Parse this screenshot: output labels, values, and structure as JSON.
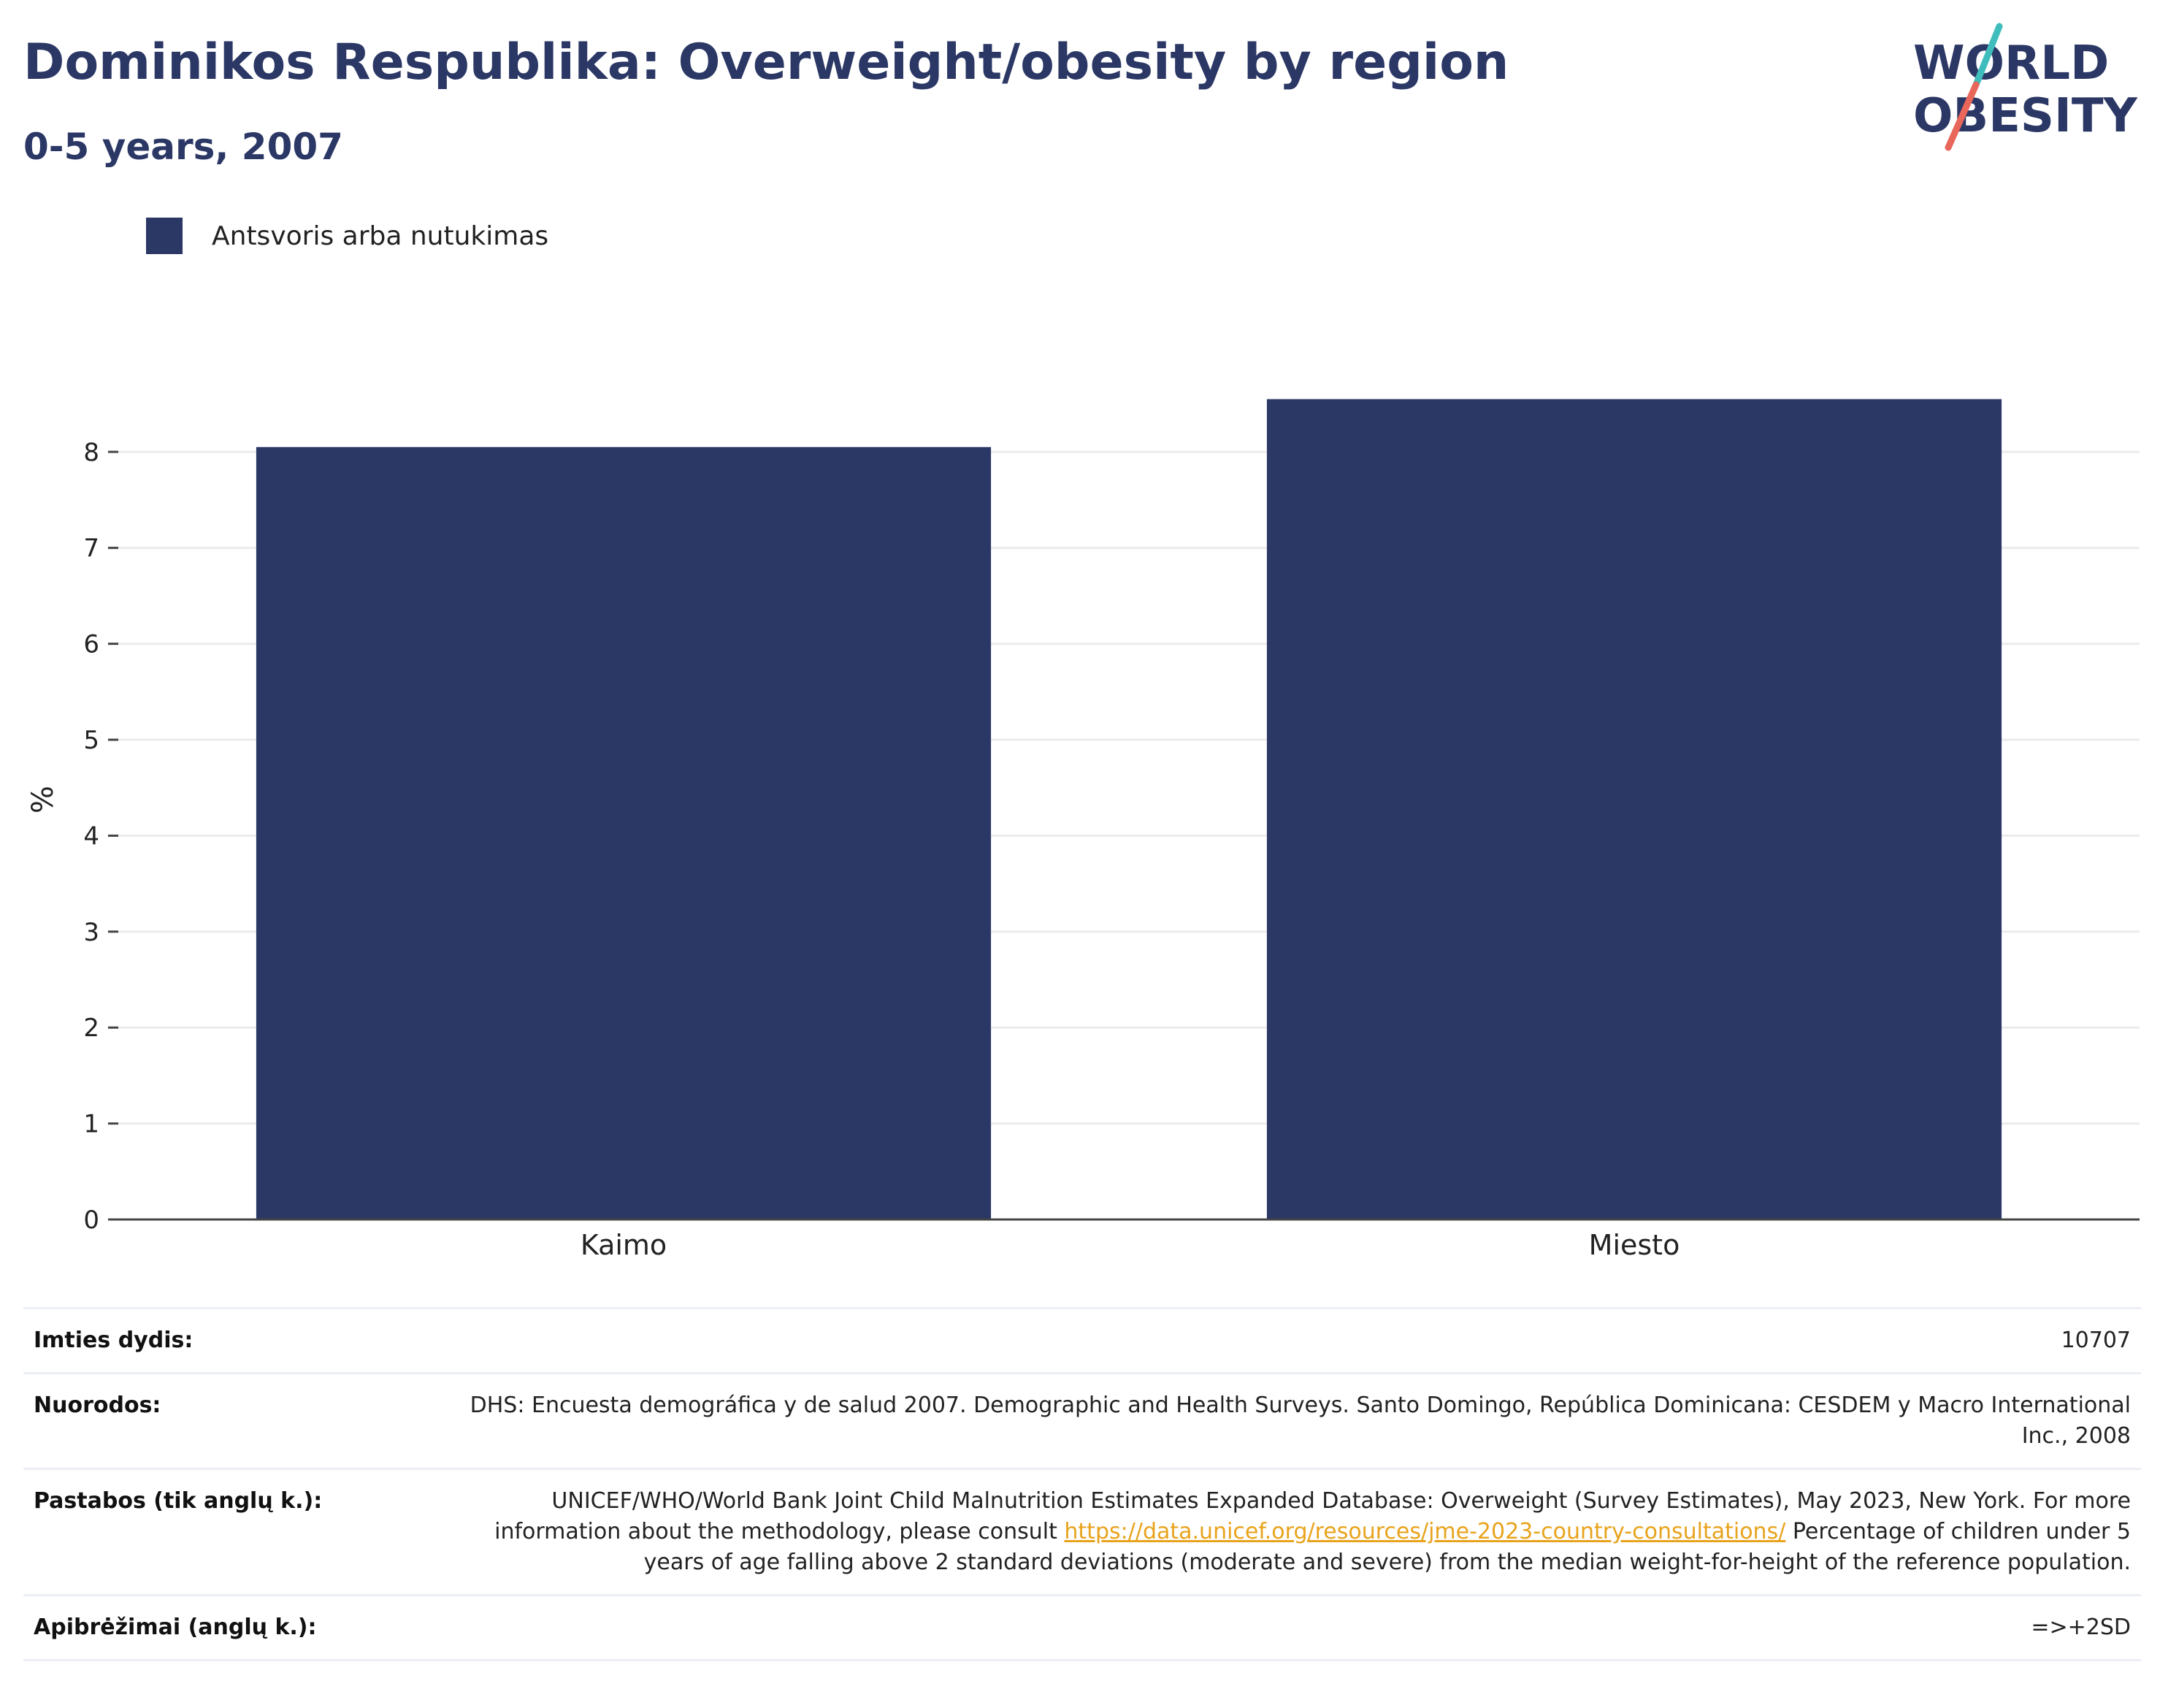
{
  "header": {
    "title": "Dominikos Respublika: Overweight/obesity by region",
    "subtitle": "0-5 years, 2007"
  },
  "logo": {
    "line1": "WORLD",
    "line2": "OBESITY",
    "colors": {
      "text": "#2b3765",
      "slash_top": "#3fbcbc",
      "slash_bottom": "#e8665a"
    }
  },
  "chart_data": {
    "type": "bar",
    "categories": [
      "Kaimo",
      "Miesto"
    ],
    "series": [
      {
        "name": "Antsvoris arba nutukimas",
        "values": [
          8.05,
          8.55
        ],
        "color": "#2b3765"
      }
    ],
    "ylabel": "%",
    "xlabel": "",
    "ylim": [
      0,
      8.6
    ],
    "yticks": [
      0,
      1,
      2,
      3,
      4,
      5,
      6,
      7,
      8
    ],
    "grid": true,
    "legend": "top-left"
  },
  "info": {
    "rows": [
      {
        "label": "Imties dydis:",
        "value": "10707"
      },
      {
        "label": "Nuorodos:",
        "value": "DHS: Encuesta demográfica y de salud 2007. Demographic and Health Surveys. Santo Domingo, República Dominicana: CESDEM y Macro International Inc., 2008"
      },
      {
        "label": "Pastabos (tik anglų k.):",
        "value_before": "UNICEF/WHO/World Bank Joint Child Malnutrition Estimates Expanded Database: Overweight (Survey Estimates), May 2023, New York. For more information about the methodology, please consult ",
        "link": "https://data.unicef.org/resources/jme-2023-country-consultations/",
        "value_after": " Percentage of children under 5 years of age falling above 2 standard deviations (moderate and severe) from the median weight-for-height of the reference population."
      },
      {
        "label": "Apibrėžimai (anglų k.):",
        "value": "=>+2SD"
      }
    ]
  }
}
